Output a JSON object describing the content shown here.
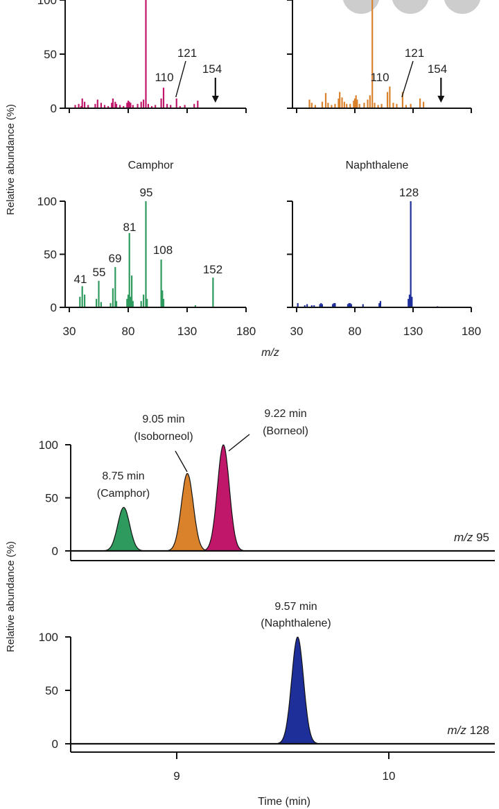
{
  "overlay": {
    "buttons": [
      "circle-button-1",
      "circle-button-2",
      "circle-button-3"
    ]
  },
  "colors": {
    "borneol": "#c0176b",
    "isoborneol": "#d9822b",
    "camphor": "#2e9a5e",
    "naphthalene": "#1f2f9a",
    "axis": "#111111"
  },
  "chart_data": [
    {
      "type": "bar",
      "id": "spectrum-borneol",
      "title": "",
      "xlim": [
        30,
        180
      ],
      "ylim": [
        0,
        100
      ],
      "yticks": [
        0,
        50,
        100
      ],
      "xticks": [],
      "color": "#c0176b",
      "bars": [
        [
          35,
          3
        ],
        [
          38,
          4
        ],
        [
          40,
          2
        ],
        [
          41,
          9
        ],
        [
          43,
          6
        ],
        [
          46,
          3
        ],
        [
          52,
          4
        ],
        [
          54,
          8
        ],
        [
          57,
          5
        ],
        [
          60,
          3
        ],
        [
          63,
          2
        ],
        [
          66,
          5
        ],
        [
          67,
          9
        ],
        [
          69,
          6
        ],
        [
          70,
          4
        ],
        [
          73,
          3
        ],
        [
          76,
          2
        ],
        [
          79,
          5
        ],
        [
          80,
          7
        ],
        [
          81,
          6
        ],
        [
          82,
          5
        ],
        [
          84,
          3
        ],
        [
          88,
          4
        ],
        [
          91,
          6
        ],
        [
          93,
          8
        ],
        [
          95,
          100
        ],
        [
          97,
          4
        ],
        [
          100,
          2
        ],
        [
          103,
          3
        ],
        [
          108,
          9
        ],
        [
          110,
          19
        ],
        [
          113,
          4
        ],
        [
          116,
          3
        ],
        [
          121,
          9
        ],
        [
          124,
          2
        ],
        [
          128,
          3
        ],
        [
          136,
          4
        ],
        [
          139,
          7
        ]
      ],
      "labels": [
        {
          "x": 110,
          "text": "110"
        },
        {
          "x": 121,
          "text": "121"
        },
        {
          "x": 154,
          "text": "154"
        }
      ],
      "arrow_at": 154
    },
    {
      "type": "bar",
      "id": "spectrum-isoborneol",
      "title": "",
      "xlim": [
        30,
        180
      ],
      "ylim": [
        0,
        100
      ],
      "yticks": [],
      "xticks": [],
      "color": "#d9822b",
      "bars": [
        [
          41,
          8
        ],
        [
          43,
          5
        ],
        [
          46,
          3
        ],
        [
          52,
          6
        ],
        [
          55,
          14
        ],
        [
          57,
          5
        ],
        [
          60,
          3
        ],
        [
          63,
          4
        ],
        [
          66,
          9
        ],
        [
          67,
          15
        ],
        [
          69,
          10
        ],
        [
          71,
          6
        ],
        [
          73,
          4
        ],
        [
          76,
          4
        ],
        [
          79,
          7
        ],
        [
          80,
          9
        ],
        [
          81,
          12
        ],
        [
          82,
          8
        ],
        [
          84,
          4
        ],
        [
          88,
          5
        ],
        [
          91,
          8
        ],
        [
          93,
          12
        ],
        [
          95,
          100
        ],
        [
          97,
          5
        ],
        [
          100,
          3
        ],
        [
          103,
          4
        ],
        [
          108,
          15
        ],
        [
          110,
          20
        ],
        [
          113,
          5
        ],
        [
          116,
          4
        ],
        [
          121,
          15
        ],
        [
          124,
          3
        ],
        [
          128,
          4
        ],
        [
          136,
          9
        ],
        [
          139,
          6
        ]
      ],
      "labels": [
        {
          "x": 110,
          "text": "110"
        },
        {
          "x": 121,
          "text": "121"
        },
        {
          "x": 154,
          "text": "154"
        }
      ],
      "arrow_at": 154
    },
    {
      "type": "bar",
      "id": "spectrum-camphor",
      "title": "Camphor",
      "xlim": [
        30,
        180
      ],
      "ylim": [
        0,
        100
      ],
      "yticks": [
        0,
        50,
        100
      ],
      "xticks": [
        30,
        80,
        130,
        180
      ],
      "color": "#2e9a5e",
      "bars": [
        [
          39,
          10
        ],
        [
          41,
          20
        ],
        [
          43,
          12
        ],
        [
          53,
          8
        ],
        [
          55,
          25
        ],
        [
          57,
          5
        ],
        [
          65,
          4
        ],
        [
          67,
          18
        ],
        [
          69,
          38
        ],
        [
          70,
          6
        ],
        [
          79,
          8
        ],
        [
          80,
          12
        ],
        [
          81,
          70
        ],
        [
          82,
          10
        ],
        [
          83,
          30
        ],
        [
          84,
          6
        ],
        [
          91,
          6
        ],
        [
          93,
          12
        ],
        [
          95,
          100
        ],
        [
          96,
          8
        ],
        [
          108,
          45
        ],
        [
          109,
          16
        ],
        [
          110,
          8
        ],
        [
          137,
          2
        ],
        [
          152,
          28
        ]
      ],
      "labels": [
        {
          "x": 41,
          "text": "41"
        },
        {
          "x": 55,
          "text": "55"
        },
        {
          "x": 69,
          "text": "69"
        },
        {
          "x": 81,
          "text": "81"
        },
        {
          "x": 95,
          "text": "95"
        },
        {
          "x": 108,
          "text": "108"
        },
        {
          "x": 152,
          "text": "152"
        }
      ]
    },
    {
      "type": "bar",
      "id": "spectrum-naphthalene",
      "title": "Naphthalene",
      "xlim": [
        30,
        180
      ],
      "ylim": [
        0,
        100
      ],
      "yticks": [],
      "xticks": [
        30,
        80,
        130,
        180
      ],
      "color": "#1f2f9a",
      "bars": [
        [
          31,
          4
        ],
        [
          37,
          2
        ],
        [
          39,
          3
        ],
        [
          43,
          2
        ],
        [
          45,
          2
        ],
        [
          50,
          3
        ],
        [
          51,
          4
        ],
        [
          52,
          3
        ],
        [
          61,
          3
        ],
        [
          62,
          4
        ],
        [
          63,
          4
        ],
        [
          74,
          3
        ],
        [
          75,
          4
        ],
        [
          76,
          4
        ],
        [
          77,
          3
        ],
        [
          87,
          3
        ],
        [
          101,
          4
        ],
        [
          102,
          6
        ],
        [
          126,
          8
        ],
        [
          127,
          12
        ],
        [
          128,
          100
        ],
        [
          129,
          10
        ],
        [
          151,
          1
        ]
      ],
      "labels": [
        {
          "x": 128,
          "text": "128"
        }
      ]
    },
    {
      "type": "line",
      "id": "chromatogram-mz95",
      "xlim": [
        8.5,
        10.5
      ],
      "ylim": [
        0,
        100
      ],
      "yticks": [
        0,
        50,
        100
      ],
      "trace_label": "m/z 95",
      "peaks": [
        {
          "rt": 8.75,
          "height": 41,
          "color": "#2e9a5e",
          "label_time": "8.75 min",
          "label_name": "(Camphor)"
        },
        {
          "rt": 9.05,
          "height": 73,
          "color": "#d9822b",
          "label_time": "9.05 min",
          "label_name": "(Isoborneol)"
        },
        {
          "rt": 9.22,
          "height": 100,
          "color": "#c0176b",
          "label_time": "9.22 min",
          "label_name": "(Borneol)"
        }
      ]
    },
    {
      "type": "line",
      "id": "chromatogram-mz128",
      "xlim": [
        8.5,
        10.5
      ],
      "ylim": [
        0,
        100
      ],
      "yticks": [
        0,
        50,
        100
      ],
      "xticks": [
        9,
        10
      ],
      "xlabel": "Time (min)",
      "trace_label": "m/z 128",
      "peaks": [
        {
          "rt": 9.57,
          "height": 100,
          "color": "#1f2f9a",
          "label_time": "9.57 min",
          "label_name": "(Naphthalene)"
        }
      ]
    }
  ],
  "shared_labels": {
    "ylabel_top": "Relative abundance (%)",
    "ylabel_bottom": "Relative abundance (%)",
    "xlabel_mz": "m/z",
    "xlabel_time": "Time (min)"
  }
}
